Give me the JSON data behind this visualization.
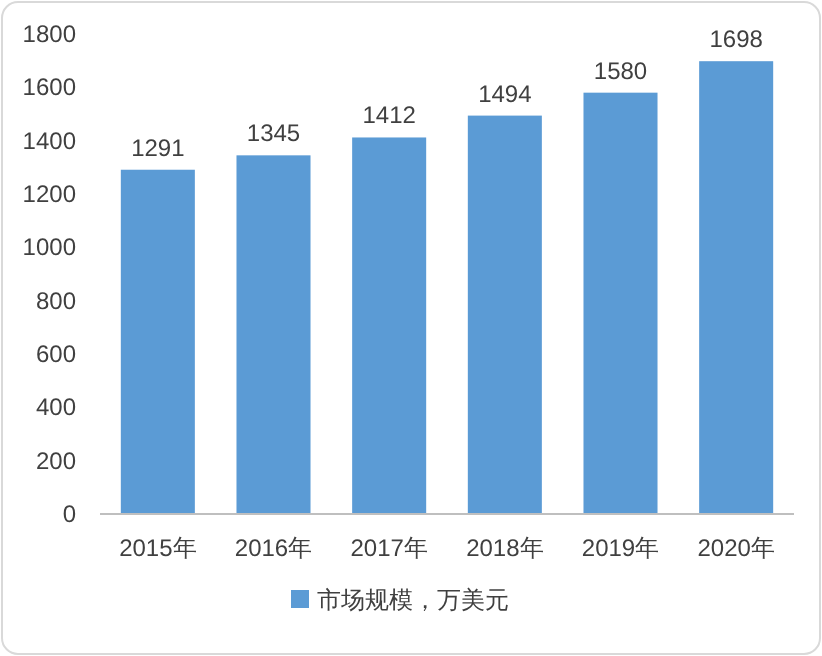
{
  "chart_data": {
    "type": "bar",
    "categories": [
      "2015年",
      "2016年",
      "2017年",
      "2018年",
      "2019年",
      "2020年"
    ],
    "series": [
      {
        "name": "市场规模，万美元",
        "color": "#5b9bd5",
        "values": [
          1291,
          1345,
          1412,
          1494,
          1580,
          1698
        ]
      }
    ],
    "ylim": [
      0,
      1800
    ],
    "yticks": [
      0,
      200,
      400,
      600,
      800,
      1000,
      1200,
      1400,
      1600,
      1800
    ],
    "data_labels": true,
    "legend": "bottom",
    "grid": false
  }
}
